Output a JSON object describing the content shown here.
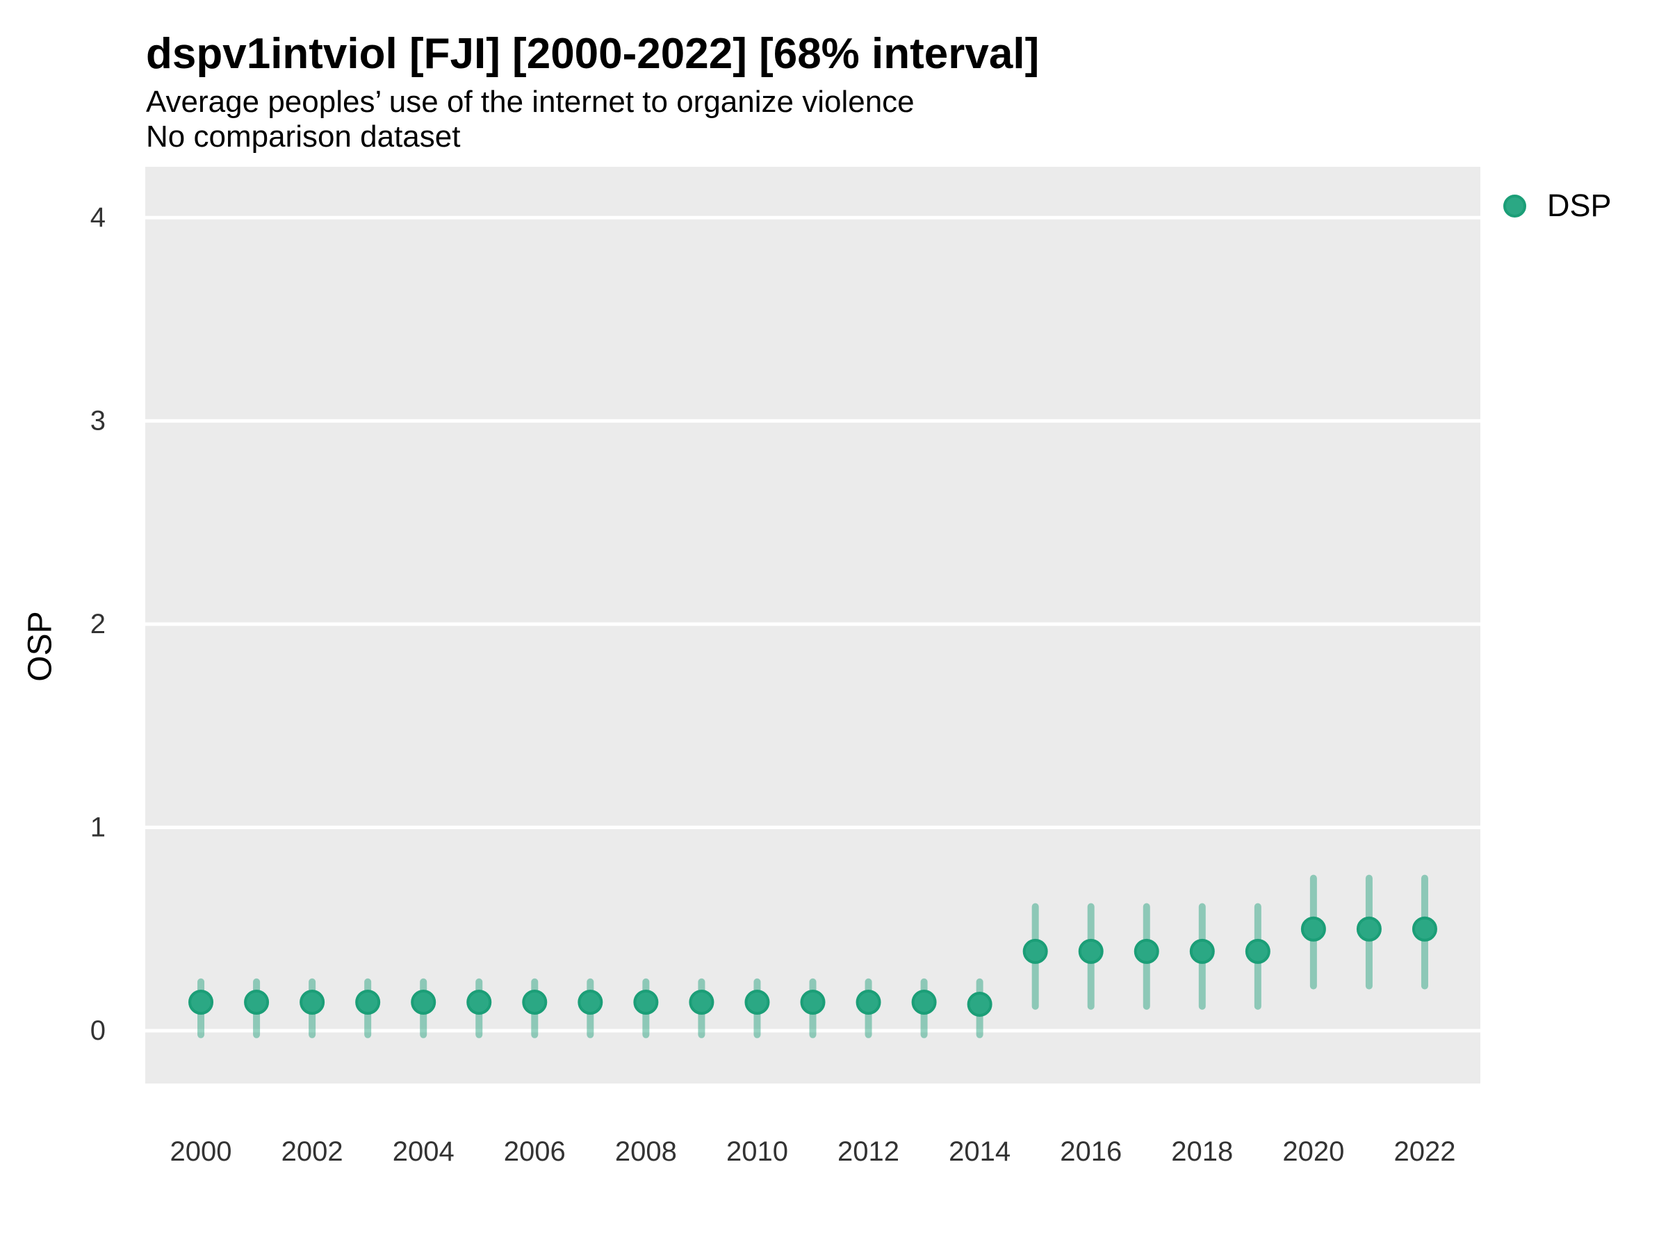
{
  "title": "dspv1intviol [FJI] [2000-2022] [68% interval]",
  "subtitle1": "Average peoples’ use of the internet to organize violence",
  "subtitle2": "No comparison dataset",
  "y_axis_title": "OSP",
  "legend": {
    "label": "DSP"
  },
  "colors": {
    "text": "#000000",
    "tick_label": "#333333",
    "panel_bg": "#ebebeb",
    "gridline": "#ffffff",
    "point_fill": "#2ba884",
    "point_stroke": "#1b9e77",
    "interval_stroke": "rgba(27,158,119,0.45)"
  },
  "chart_data": {
    "type": "scatter",
    "title": "dspv1intviol [FJI] [2000-2022] [68% interval]",
    "subtitle": [
      "Average peoples’ use of the internet to organize violence",
      "No comparison dataset"
    ],
    "xlabel": "",
    "ylabel": "OSP",
    "legend_position": "right",
    "grid": "horizontal-major-white",
    "x_domain": [
      1999,
      2023
    ],
    "y_domain": [
      -0.26,
      4.25
    ],
    "x_ticks": [
      2000,
      2002,
      2004,
      2006,
      2008,
      2010,
      2012,
      2014,
      2016,
      2018,
      2020,
      2022
    ],
    "y_ticks": [
      0,
      1,
      2,
      3,
      4
    ],
    "interval_label": "68% interval",
    "series": [
      {
        "name": "DSP",
        "points": [
          {
            "year": 2000,
            "value": 0.14,
            "lo": -0.02,
            "hi": 0.24
          },
          {
            "year": 2001,
            "value": 0.14,
            "lo": -0.02,
            "hi": 0.24
          },
          {
            "year": 2002,
            "value": 0.14,
            "lo": -0.02,
            "hi": 0.24
          },
          {
            "year": 2003,
            "value": 0.14,
            "lo": -0.02,
            "hi": 0.24
          },
          {
            "year": 2004,
            "value": 0.14,
            "lo": -0.02,
            "hi": 0.24
          },
          {
            "year": 2005,
            "value": 0.14,
            "lo": -0.02,
            "hi": 0.24
          },
          {
            "year": 2006,
            "value": 0.14,
            "lo": -0.02,
            "hi": 0.24
          },
          {
            "year": 2007,
            "value": 0.14,
            "lo": -0.02,
            "hi": 0.24
          },
          {
            "year": 2008,
            "value": 0.14,
            "lo": -0.02,
            "hi": 0.24
          },
          {
            "year": 2009,
            "value": 0.14,
            "lo": -0.02,
            "hi": 0.24
          },
          {
            "year": 2010,
            "value": 0.14,
            "lo": -0.02,
            "hi": 0.24
          },
          {
            "year": 2011,
            "value": 0.14,
            "lo": -0.02,
            "hi": 0.24
          },
          {
            "year": 2012,
            "value": 0.14,
            "lo": -0.02,
            "hi": 0.24
          },
          {
            "year": 2013,
            "value": 0.14,
            "lo": -0.02,
            "hi": 0.24
          },
          {
            "year": 2014,
            "value": 0.13,
            "lo": -0.02,
            "hi": 0.24
          },
          {
            "year": 2015,
            "value": 0.39,
            "lo": 0.12,
            "hi": 0.61
          },
          {
            "year": 2016,
            "value": 0.39,
            "lo": 0.12,
            "hi": 0.61
          },
          {
            "year": 2017,
            "value": 0.39,
            "lo": 0.12,
            "hi": 0.61
          },
          {
            "year": 2018,
            "value": 0.39,
            "lo": 0.12,
            "hi": 0.61
          },
          {
            "year": 2019,
            "value": 0.39,
            "lo": 0.12,
            "hi": 0.61
          },
          {
            "year": 2020,
            "value": 0.5,
            "lo": 0.22,
            "hi": 0.75
          },
          {
            "year": 2021,
            "value": 0.5,
            "lo": 0.22,
            "hi": 0.75
          },
          {
            "year": 2022,
            "value": 0.5,
            "lo": 0.22,
            "hi": 0.75
          }
        ]
      }
    ]
  }
}
